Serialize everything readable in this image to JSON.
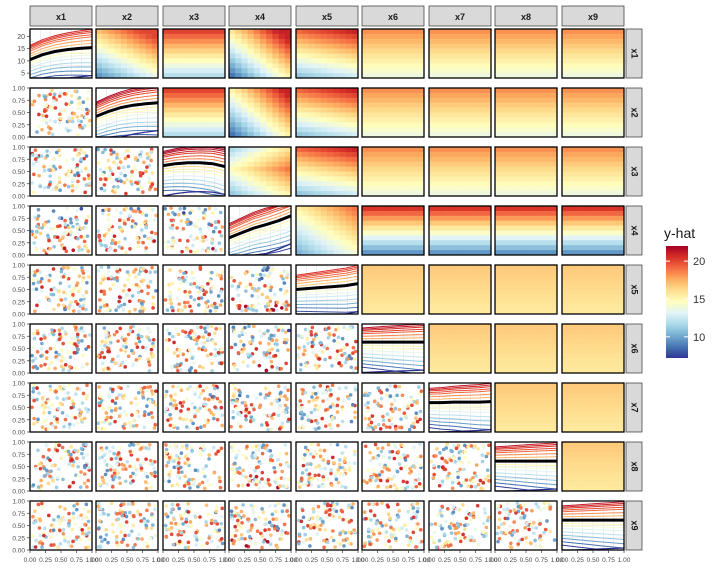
{
  "chart_data": {
    "type": "heatmap",
    "title": "",
    "variables": [
      "x1",
      "x2",
      "x3",
      "x4",
      "x5",
      "x6",
      "x7",
      "x8",
      "x9"
    ],
    "column_strip_labels": [
      "x1",
      "x2",
      "x3",
      "x4",
      "x5",
      "x6",
      "x7",
      "x8",
      "x9"
    ],
    "row_strip_labels": [
      "x1",
      "x2",
      "x3",
      "x4",
      "x5",
      "x6",
      "x7",
      "x8",
      "x9"
    ],
    "layout_description": {
      "upper_triangle": "two-way partial dependence heatmaps (y-hat)",
      "diagonal": "ICE / partial dependence curves with bold average line",
      "lower_triangle": "scatter of observed points colored by y-hat"
    },
    "y_axis": {
      "first_row_ticks": [
        "5",
        "10",
        "15",
        "20"
      ],
      "first_row_range": [
        3,
        23
      ],
      "other_rows_ticks": [
        "0.00",
        "0.25",
        "0.50",
        "0.75",
        "1.00"
      ],
      "other_rows_range": [
        0,
        1
      ]
    },
    "x_axis": {
      "bottom_tick_labels": [
        "0.00",
        "0.25",
        "0.50",
        "0.75",
        "1.00"
      ],
      "range": [
        0,
        1
      ]
    },
    "legend": {
      "title": "y-hat",
      "position": "right",
      "min": 7.2,
      "max": 22,
      "ticks": [
        10,
        15,
        20
      ],
      "palette": [
        "#313695",
        "#4575b4",
        "#74add1",
        "#abd9e9",
        "#e0f3f8",
        "#ffffbf",
        "#fee090",
        "#fdae61",
        "#f46d43",
        "#d73027",
        "#a50026"
      ]
    },
    "diagonal_curves": {
      "x1": {
        "avg": [
          10.5,
          12.5,
          13.8,
          14.6,
          15.1,
          15.4
        ],
        "range_low": 3.5,
        "range_high": 21
      },
      "x2": {
        "avg": [
          0.42,
          0.52,
          0.6,
          0.65,
          0.68,
          0.7
        ]
      },
      "x3": {
        "avg": [
          0.62,
          0.66,
          0.68,
          0.68,
          0.66,
          0.6
        ]
      },
      "x4": {
        "avg": [
          0.35,
          0.45,
          0.55,
          0.62,
          0.7,
          0.8
        ]
      },
      "x5": {
        "avg": [
          0.5,
          0.52,
          0.54,
          0.56,
          0.58,
          0.62
        ]
      },
      "x6": {
        "avg": [
          0.63,
          0.63,
          0.63,
          0.63,
          0.63,
          0.63
        ]
      },
      "x7": {
        "avg": [
          0.6,
          0.6,
          0.61,
          0.61,
          0.61,
          0.62
        ]
      },
      "x8": {
        "avg": [
          0.61,
          0.61,
          0.61,
          0.61,
          0.61,
          0.61
        ]
      },
      "x9": {
        "avg": [
          0.61,
          0.61,
          0.61,
          0.61,
          0.61,
          0.61
        ]
      }
    }
  }
}
